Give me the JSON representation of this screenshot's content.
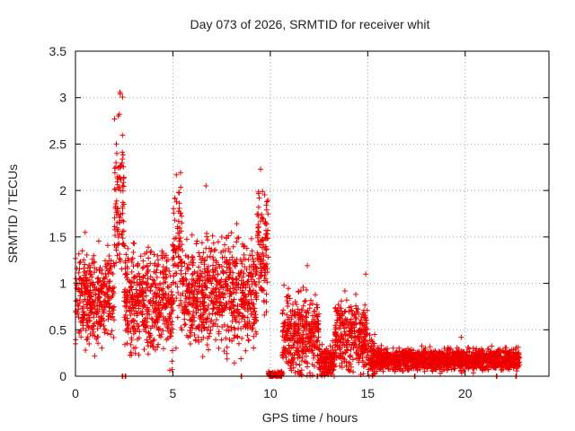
{
  "chart_data": {
    "type": "scatter",
    "title": "Day 073 of 2026, SRMTID for receiver whit",
    "xlabel": "GPS time / hours",
    "ylabel": "SRMTID / TECUs",
    "xlim": [
      0,
      24.3
    ],
    "ylim": [
      0,
      3.5
    ],
    "x_ticks": [
      0,
      5,
      10,
      15,
      20
    ],
    "y_ticks": [
      0,
      0.5,
      1,
      1.5,
      2,
      2.5,
      3,
      3.5
    ],
    "x_tick_labels": [
      "0",
      "5",
      "10",
      "15",
      "20"
    ],
    "y_tick_labels": [
      "0",
      "0.5",
      "1",
      "1.5",
      "2",
      "2.5",
      "3",
      "3.5"
    ],
    "grid": true,
    "marker": "+",
    "color": "#ee0000",
    "envelope": {
      "description": "approximate mean and spread of SRMTID values per hour segment",
      "segments": [
        {
          "x": [
            0.0,
            2.0
          ],
          "mean": 0.85,
          "spread": 0.35
        },
        {
          "x": [
            2.0,
            2.5
          ],
          "mean": 1.9,
          "spread": 0.6
        },
        {
          "x": [
            2.5,
            5.0
          ],
          "mean": 0.8,
          "spread": 0.4
        },
        {
          "x": [
            5.0,
            5.5
          ],
          "mean": 1.3,
          "spread": 0.5
        },
        {
          "x": [
            5.5,
            9.3
          ],
          "mean": 0.9,
          "spread": 0.4
        },
        {
          "x": [
            9.3,
            9.9
          ],
          "mean": 1.4,
          "spread": 0.45
        },
        {
          "x": [
            9.9,
            10.6
          ],
          "mean": 0.02,
          "spread": 0.02
        },
        {
          "x": [
            10.6,
            12.5
          ],
          "mean": 0.45,
          "spread": 0.3
        },
        {
          "x": [
            12.5,
            13.3
          ],
          "mean": 0.15,
          "spread": 0.12
        },
        {
          "x": [
            13.3,
            15.0
          ],
          "mean": 0.45,
          "spread": 0.25
        },
        {
          "x": [
            15.0,
            15.4
          ],
          "mean": 0.2,
          "spread": 0.15
        },
        {
          "x": [
            15.4,
            22.8
          ],
          "mean": 0.18,
          "spread": 0.08
        }
      ],
      "extremes": [
        {
          "x": 2.3,
          "y": 3.04
        },
        {
          "x": 2.25,
          "y": 2.82
        },
        {
          "x": 2.1,
          "y": 2.5
        },
        {
          "x": 9.5,
          "y": 2.23
        },
        {
          "x": 6.7,
          "y": 2.05
        },
        {
          "x": 5.3,
          "y": 1.98
        },
        {
          "x": 9.6,
          "y": 1.99
        },
        {
          "x": 0.5,
          "y": 1.55
        },
        {
          "x": 11.9,
          "y": 1.19
        },
        {
          "x": 14.9,
          "y": 1.1
        },
        {
          "x": 19.8,
          "y": 0.42
        }
      ],
      "baseline_markers_x": [
        2.4,
        2.55,
        8.5,
        10.1,
        10.3,
        12.4,
        17.4,
        21.6,
        22.6
      ]
    }
  }
}
